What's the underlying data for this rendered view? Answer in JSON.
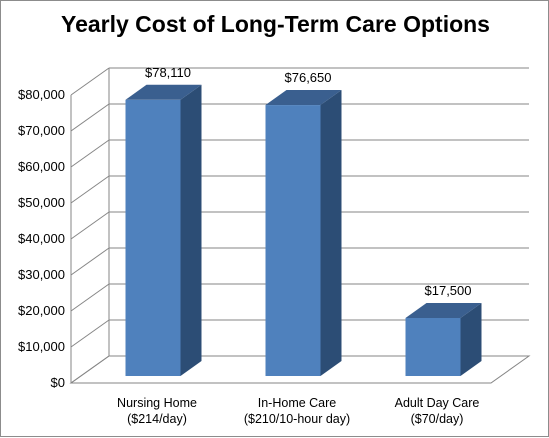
{
  "chart_data": {
    "type": "bar",
    "title": "Yearly Cost of Long-Term Care Options",
    "xlabel": "",
    "ylabel": "",
    "categories": [
      [
        "Nursing Home",
        "($214/day)"
      ],
      [
        "In-Home Care",
        "($210/10-hour day)"
      ],
      [
        "Adult Day Care",
        "($70/day)"
      ]
    ],
    "values": [
      78110,
      76650,
      17500
    ],
    "data_labels": [
      "$78,110",
      "$76,650",
      "$17,500"
    ],
    "ylim": [
      0,
      80000
    ],
    "yticks": [
      0,
      10000,
      20000,
      30000,
      40000,
      50000,
      60000,
      70000,
      80000
    ],
    "ytick_labels": [
      "$0",
      "$10,000",
      "$20,000",
      "$30,000",
      "$40,000",
      "$50,000",
      "$60,000",
      "$70,000",
      "$80,000"
    ],
    "grid": true,
    "style": "3d-column",
    "colors": {
      "bar_front": "#4f81bd",
      "bar_side": "#2c4d75",
      "bar_top": "#3a5f8f",
      "grid": "#868686"
    }
  }
}
